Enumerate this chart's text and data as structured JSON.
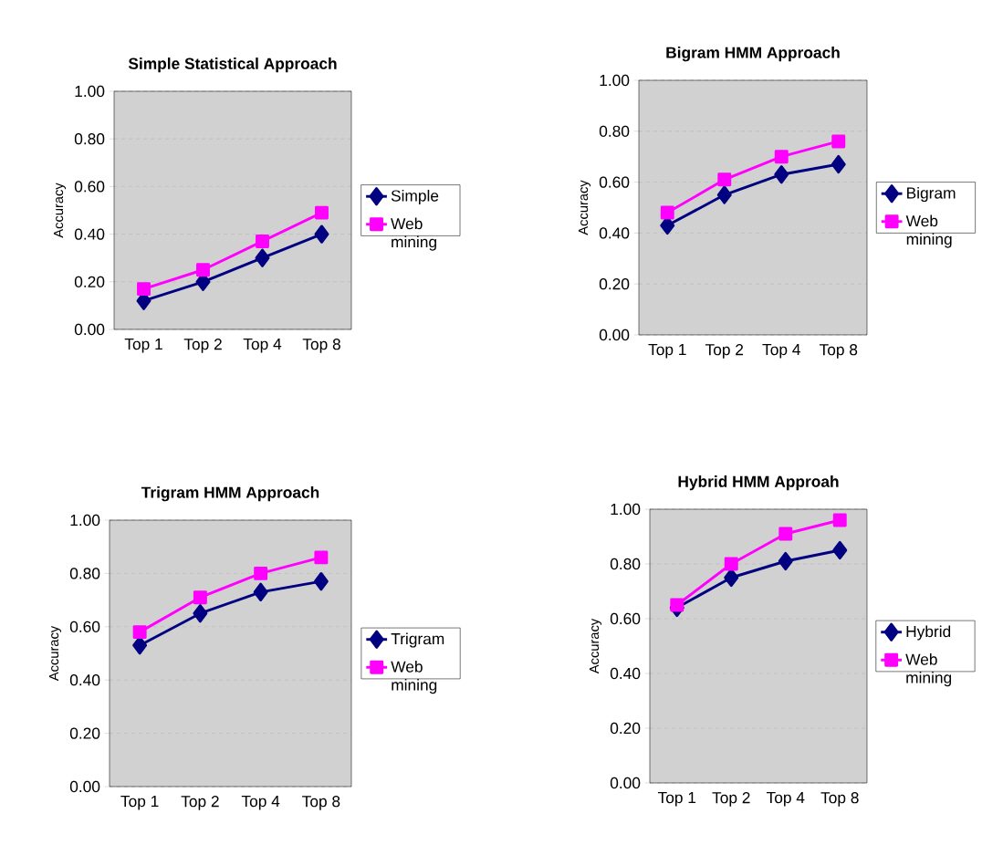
{
  "chart_data": [
    {
      "type": "line",
      "title": "Simple Statistical Approach",
      "ylabel": "Accuracy",
      "categories": [
        "Top 1",
        "Top 2",
        "Top 4",
        "Top 8"
      ],
      "series": [
        {
          "name": "Simple",
          "color": "#000080",
          "marker": "diamond",
          "values": [
            0.12,
            0.2,
            0.3,
            0.4
          ]
        },
        {
          "name": "Web mining",
          "color": "#ff00ff",
          "marker": "square",
          "values": [
            0.17,
            0.25,
            0.37,
            0.49
          ]
        }
      ],
      "ylim": [
        0,
        1
      ],
      "yticks": [
        {
          "value": 0,
          "label": "0.00"
        },
        {
          "value": 0.2,
          "label": "0.20"
        },
        {
          "value": 0.4,
          "label": "0.40"
        },
        {
          "value": 0.6,
          "label": "0.60"
        },
        {
          "value": 0.8,
          "label": "0.80"
        },
        {
          "value": 1,
          "label": "1.00"
        }
      ],
      "grid": "y",
      "legend": "right"
    },
    {
      "type": "line",
      "title": "Bigram HMM Approach",
      "ylabel": "Accuracy",
      "categories": [
        "Top 1",
        "Top 2",
        "Top 4",
        "Top 8"
      ],
      "series": [
        {
          "name": "Bigram",
          "color": "#000080",
          "marker": "diamond",
          "values": [
            0.43,
            0.55,
            0.63,
            0.67
          ]
        },
        {
          "name": "Web mining",
          "color": "#ff00ff",
          "marker": "square",
          "values": [
            0.48,
            0.61,
            0.7,
            0.76
          ]
        }
      ],
      "ylim": [
        0,
        1
      ],
      "yticks": [
        {
          "value": 0,
          "label": "0.00"
        },
        {
          "value": 0.2,
          "label": "0.20"
        },
        {
          "value": 0.4,
          "label": "0.40"
        },
        {
          "value": 0.6,
          "label": "0.60"
        },
        {
          "value": 0.8,
          "label": "0.80"
        },
        {
          "value": 1,
          "label": "1.00"
        }
      ],
      "grid": "y",
      "legend": "right"
    },
    {
      "type": "line",
      "title": "Trigram HMM Approach",
      "ylabel": "Accuracy",
      "categories": [
        "Top 1",
        "Top 2",
        "Top 4",
        "Top 8"
      ],
      "series": [
        {
          "name": "Trigram",
          "color": "#000080",
          "marker": "diamond",
          "values": [
            0.53,
            0.65,
            0.73,
            0.77
          ]
        },
        {
          "name": "Web mining",
          "color": "#ff00ff",
          "marker": "square",
          "values": [
            0.58,
            0.71,
            0.8,
            0.86
          ]
        }
      ],
      "ylim": [
        0,
        1
      ],
      "yticks": [
        {
          "value": 0,
          "label": "0.00"
        },
        {
          "value": 0.2,
          "label": "0.20"
        },
        {
          "value": 0.4,
          "label": "0.40"
        },
        {
          "value": 0.6,
          "label": "0.60"
        },
        {
          "value": 0.8,
          "label": "0.80"
        },
        {
          "value": 1,
          "label": "1.00"
        }
      ],
      "grid": "y",
      "legend": "right"
    },
    {
      "type": "line",
      "title": "Hybrid HMM Approah",
      "ylabel": "Accuracy",
      "categories": [
        "Top 1",
        "Top 2",
        "Top 4",
        "Top 8"
      ],
      "series": [
        {
          "name": "Hybrid",
          "color": "#000080",
          "marker": "diamond",
          "values": [
            0.64,
            0.75,
            0.81,
            0.85
          ]
        },
        {
          "name": "Web mining",
          "color": "#ff00ff",
          "marker": "square",
          "values": [
            0.65,
            0.8,
            0.91,
            0.96
          ]
        }
      ],
      "ylim": [
        0,
        1
      ],
      "yticks": [
        {
          "value": 0,
          "label": "0.00"
        },
        {
          "value": 0.2,
          "label": "0.20"
        },
        {
          "value": 0.4,
          "label": "0.40"
        },
        {
          "value": 0.6,
          "label": "0.60"
        },
        {
          "value": 0.8,
          "label": "0.80"
        },
        {
          "value": 1,
          "label": "1.00"
        }
      ],
      "grid": "y",
      "legend": "right"
    }
  ]
}
